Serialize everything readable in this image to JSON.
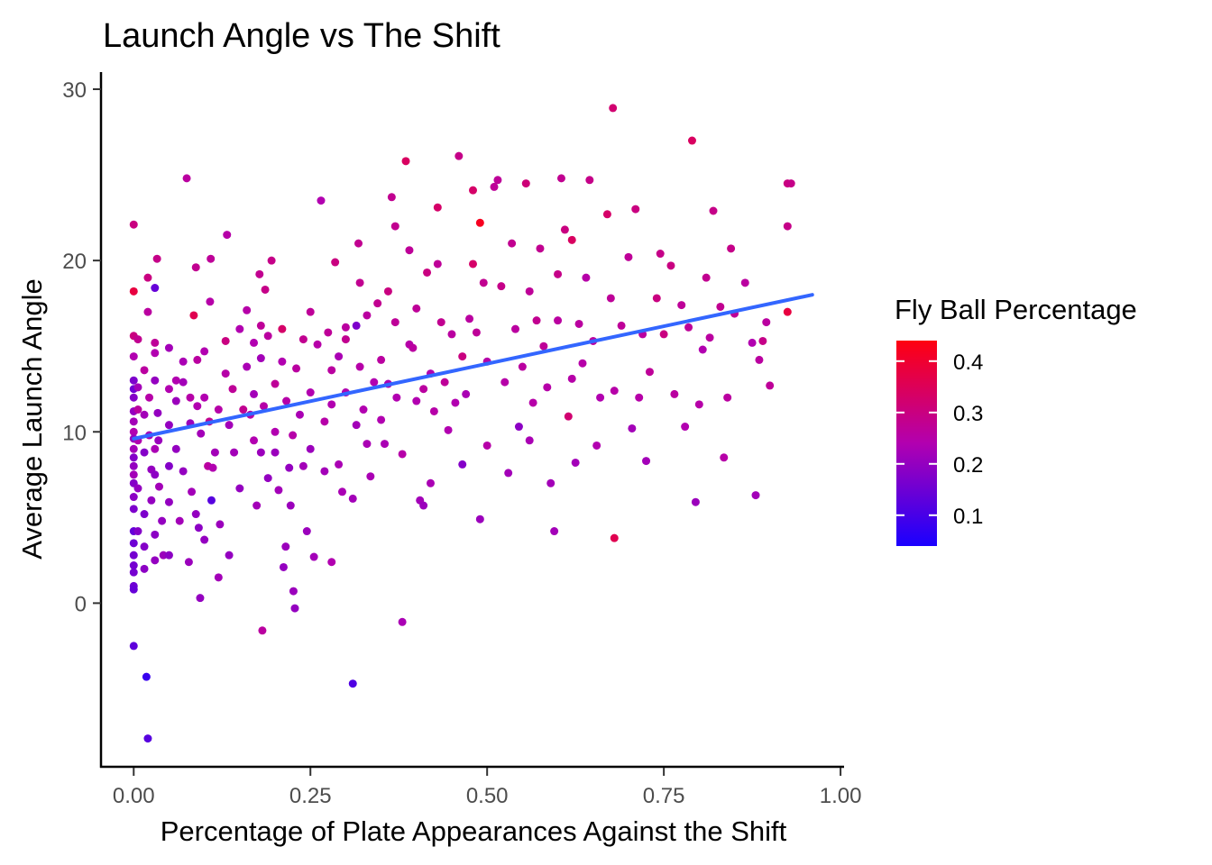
{
  "chart_data": {
    "type": "scatter",
    "title": "Launch Angle vs The Shift",
    "xlabel": "Percentage of Plate Appearances Against the Shift",
    "ylabel": "Average Launch Angle",
    "xlim": [
      -0.045,
      1.005
    ],
    "ylim": [
      -9.5,
      31
    ],
    "x_ticks": [
      0,
      0.25,
      0.5,
      0.75,
      1.0
    ],
    "x_tick_labels": [
      "0.00",
      "0.25",
      "0.50",
      "0.75",
      "1.00"
    ],
    "y_ticks": [
      0,
      10,
      20,
      30
    ],
    "y_tick_labels": [
      "0",
      "10",
      "20",
      "30"
    ],
    "grid": false,
    "legend": {
      "title": "Fly Ball Percentage",
      "placement": "right",
      "min": 0.04,
      "max": 0.44,
      "ticks": [
        0.1,
        0.2,
        0.3,
        0.4
      ],
      "tick_labels": [
        "0.1",
        "0.2",
        "0.3",
        "0.4"
      ],
      "low_color": "#1a00ff",
      "high_color": "#ff0010"
    },
    "trend_line": {
      "x": [
        0.0,
        0.96
      ],
      "y": [
        9.6,
        18.0
      ],
      "color": "#3366ff"
    },
    "points": [
      [
        0.0,
        22.1,
        0.3
      ],
      [
        0.0,
        18.2,
        0.38
      ],
      [
        0.0,
        15.6,
        0.3
      ],
      [
        0.0,
        14.4,
        0.24
      ],
      [
        0.0,
        13.0,
        0.17
      ],
      [
        0.0,
        12.5,
        0.15
      ],
      [
        0.0,
        12.0,
        0.18
      ],
      [
        0.0,
        11.2,
        0.2
      ],
      [
        0.0,
        10.6,
        0.22
      ],
      [
        0.0,
        10.0,
        0.24
      ],
      [
        0.0,
        9.6,
        0.2
      ],
      [
        0.0,
        9.0,
        0.22
      ],
      [
        0.0,
        8.5,
        0.18
      ],
      [
        0.0,
        8.0,
        0.2
      ],
      [
        0.0,
        7.5,
        0.22
      ],
      [
        0.0,
        7.0,
        0.18
      ],
      [
        0.0,
        6.2,
        0.19
      ],
      [
        0.0,
        5.5,
        0.17
      ],
      [
        0.0,
        4.2,
        0.14
      ],
      [
        0.0,
        3.5,
        0.15
      ],
      [
        0.0,
        2.8,
        0.16
      ],
      [
        0.0,
        2.2,
        0.16
      ],
      [
        0.0,
        1.8,
        0.16
      ],
      [
        0.0,
        1.0,
        0.15
      ],
      [
        0.0,
        0.8,
        0.14
      ],
      [
        0.0,
        -2.5,
        0.13
      ],
      [
        0.006,
        15.4,
        0.28
      ],
      [
        0.006,
        12.6,
        0.22
      ],
      [
        0.006,
        11.3,
        0.26
      ],
      [
        0.006,
        9.5,
        0.24
      ],
      [
        0.006,
        6.7,
        0.2
      ],
      [
        0.006,
        4.2,
        0.18
      ],
      [
        0.015,
        13.6,
        0.26
      ],
      [
        0.015,
        11.0,
        0.22
      ],
      [
        0.015,
        8.8,
        0.18
      ],
      [
        0.015,
        5.2,
        0.17
      ],
      [
        0.015,
        3.3,
        0.18
      ],
      [
        0.015,
        2.0,
        0.19
      ],
      [
        0.018,
        -4.3,
        0.08
      ],
      [
        0.02,
        -7.9,
        0.12
      ],
      [
        0.02,
        19.0,
        0.3
      ],
      [
        0.02,
        17.0,
        0.26
      ],
      [
        0.022,
        12.0,
        0.25
      ],
      [
        0.022,
        9.8,
        0.22
      ],
      [
        0.025,
        7.8,
        0.2
      ],
      [
        0.025,
        6.0,
        0.2
      ],
      [
        0.03,
        18.4,
        0.14
      ],
      [
        0.03,
        15.2,
        0.27
      ],
      [
        0.03,
        14.6,
        0.24
      ],
      [
        0.03,
        13.0,
        0.2
      ],
      [
        0.03,
        9.0,
        0.23
      ],
      [
        0.03,
        7.5,
        0.19
      ],
      [
        0.03,
        4.0,
        0.19
      ],
      [
        0.03,
        2.5,
        0.2
      ],
      [
        0.033,
        20.1,
        0.29
      ],
      [
        0.034,
        11.1,
        0.2
      ],
      [
        0.035,
        9.5,
        0.21
      ],
      [
        0.036,
        6.8,
        0.22
      ],
      [
        0.04,
        4.8,
        0.2
      ],
      [
        0.042,
        2.8,
        0.21
      ],
      [
        0.05,
        14.9,
        0.22
      ],
      [
        0.05,
        12.5,
        0.24
      ],
      [
        0.05,
        10.4,
        0.2
      ],
      [
        0.05,
        8.0,
        0.18
      ],
      [
        0.05,
        5.9,
        0.2
      ],
      [
        0.05,
        2.8,
        0.19
      ],
      [
        0.06,
        13.0,
        0.24
      ],
      [
        0.06,
        11.8,
        0.21
      ],
      [
        0.06,
        9.0,
        0.2
      ],
      [
        0.065,
        4.8,
        0.22
      ],
      [
        0.07,
        14.1,
        0.23
      ],
      [
        0.07,
        12.9,
        0.22
      ],
      [
        0.07,
        7.7,
        0.2
      ],
      [
        0.075,
        24.8,
        0.26
      ],
      [
        0.078,
        2.4,
        0.21
      ],
      [
        0.08,
        12.0,
        0.25
      ],
      [
        0.08,
        10.5,
        0.21
      ],
      [
        0.082,
        6.5,
        0.22
      ],
      [
        0.085,
        16.8,
        0.36
      ],
      [
        0.088,
        19.6,
        0.28
      ],
      [
        0.088,
        5.2,
        0.2
      ],
      [
        0.09,
        11.5,
        0.24
      ],
      [
        0.09,
        14.2,
        0.26
      ],
      [
        0.092,
        4.4,
        0.19
      ],
      [
        0.094,
        0.3,
        0.2
      ],
      [
        0.095,
        9.9,
        0.22
      ],
      [
        0.1,
        14.7,
        0.24
      ],
      [
        0.1,
        12.0,
        0.24
      ],
      [
        0.1,
        3.7,
        0.2
      ],
      [
        0.105,
        8.0,
        0.26
      ],
      [
        0.107,
        10.6,
        0.28
      ],
      [
        0.108,
        17.6,
        0.25
      ],
      [
        0.109,
        20.1,
        0.27
      ],
      [
        0.11,
        6.0,
        0.12
      ],
      [
        0.112,
        7.9,
        0.24
      ],
      [
        0.115,
        8.8,
        0.22
      ],
      [
        0.12,
        11.3,
        0.25
      ],
      [
        0.12,
        1.5,
        0.22
      ],
      [
        0.122,
        4.6,
        0.21
      ],
      [
        0.13,
        15.3,
        0.3
      ],
      [
        0.13,
        13.4,
        0.25
      ],
      [
        0.132,
        21.5,
        0.25
      ],
      [
        0.135,
        10.4,
        0.22
      ],
      [
        0.135,
        2.8,
        0.2
      ],
      [
        0.14,
        12.5,
        0.27
      ],
      [
        0.142,
        8.8,
        0.22
      ],
      [
        0.15,
        16.0,
        0.24
      ],
      [
        0.15,
        6.7,
        0.2
      ],
      [
        0.155,
        11.3,
        0.28
      ],
      [
        0.16,
        13.8,
        0.23
      ],
      [
        0.16,
        17.1,
        0.25
      ],
      [
        0.165,
        11.0,
        0.25
      ],
      [
        0.17,
        15.2,
        0.24
      ],
      [
        0.17,
        12.2,
        0.22
      ],
      [
        0.17,
        9.5,
        0.24
      ],
      [
        0.174,
        5.7,
        0.22
      ],
      [
        0.178,
        19.2,
        0.28
      ],
      [
        0.18,
        16.2,
        0.27
      ],
      [
        0.18,
        14.3,
        0.22
      ],
      [
        0.18,
        8.8,
        0.21
      ],
      [
        0.182,
        -1.6,
        0.26
      ],
      [
        0.184,
        11.5,
        0.25
      ],
      [
        0.186,
        18.3,
        0.29
      ],
      [
        0.19,
        15.6,
        0.26
      ],
      [
        0.19,
        7.3,
        0.2
      ],
      [
        0.195,
        20.0,
        0.29
      ],
      [
        0.2,
        12.8,
        0.27
      ],
      [
        0.2,
        10.0,
        0.24
      ],
      [
        0.2,
        8.8,
        0.21
      ],
      [
        0.205,
        6.6,
        0.22
      ],
      [
        0.21,
        16.0,
        0.33
      ],
      [
        0.21,
        14.1,
        0.24
      ],
      [
        0.212,
        2.1,
        0.2
      ],
      [
        0.215,
        3.3,
        0.21
      ],
      [
        0.216,
        11.8,
        0.25
      ],
      [
        0.22,
        7.9,
        0.2
      ],
      [
        0.222,
        5.7,
        0.21
      ],
      [
        0.225,
        9.8,
        0.25
      ],
      [
        0.226,
        0.7,
        0.21
      ],
      [
        0.228,
        -0.3,
        0.2
      ],
      [
        0.23,
        13.7,
        0.26
      ],
      [
        0.235,
        11.0,
        0.23
      ],
      [
        0.24,
        15.4,
        0.28
      ],
      [
        0.24,
        8.0,
        0.22
      ],
      [
        0.245,
        4.2,
        0.21
      ],
      [
        0.25,
        17.0,
        0.27
      ],
      [
        0.25,
        12.3,
        0.24
      ],
      [
        0.25,
        9.0,
        0.21
      ],
      [
        0.255,
        2.7,
        0.22
      ],
      [
        0.26,
        15.1,
        0.25
      ],
      [
        0.265,
        23.5,
        0.24
      ],
      [
        0.27,
        10.6,
        0.25
      ],
      [
        0.27,
        7.7,
        0.22
      ],
      [
        0.275,
        15.8,
        0.27
      ],
      [
        0.28,
        13.6,
        0.26
      ],
      [
        0.28,
        11.6,
        0.24
      ],
      [
        0.28,
        2.4,
        0.24
      ],
      [
        0.285,
        19.9,
        0.3
      ],
      [
        0.29,
        14.4,
        0.23
      ],
      [
        0.29,
        8.1,
        0.23
      ],
      [
        0.295,
        6.5,
        0.23
      ],
      [
        0.3,
        16.1,
        0.26
      ],
      [
        0.3,
        15.4,
        0.28
      ],
      [
        0.3,
        12.3,
        0.24
      ],
      [
        0.31,
        6.1,
        0.22
      ],
      [
        0.31,
        -4.7,
        0.11
      ],
      [
        0.315,
        16.2,
        0.17
      ],
      [
        0.315,
        10.4,
        0.22
      ],
      [
        0.318,
        21.0,
        0.28
      ],
      [
        0.32,
        13.8,
        0.25
      ],
      [
        0.32,
        18.7,
        0.28
      ],
      [
        0.325,
        11.3,
        0.24
      ],
      [
        0.33,
        9.3,
        0.23
      ],
      [
        0.33,
        16.8,
        0.26
      ],
      [
        0.335,
        7.4,
        0.23
      ],
      [
        0.34,
        12.9,
        0.24
      ],
      [
        0.345,
        17.5,
        0.28
      ],
      [
        0.35,
        14.2,
        0.26
      ],
      [
        0.35,
        10.7,
        0.24
      ],
      [
        0.355,
        9.3,
        0.23
      ],
      [
        0.36,
        18.2,
        0.3
      ],
      [
        0.36,
        12.8,
        0.23
      ],
      [
        0.365,
        23.7,
        0.28
      ],
      [
        0.37,
        22.0,
        0.28
      ],
      [
        0.37,
        16.4,
        0.27
      ],
      [
        0.372,
        12.0,
        0.24
      ],
      [
        0.38,
        8.7,
        0.25
      ],
      [
        0.38,
        -1.1,
        0.23
      ],
      [
        0.385,
        25.8,
        0.34
      ],
      [
        0.39,
        15.1,
        0.25
      ],
      [
        0.39,
        20.6,
        0.27
      ],
      [
        0.395,
        14.9,
        0.26
      ],
      [
        0.4,
        11.8,
        0.24
      ],
      [
        0.4,
        17.2,
        0.27
      ],
      [
        0.405,
        6.0,
        0.22
      ],
      [
        0.41,
        12.5,
        0.26
      ],
      [
        0.41,
        5.7,
        0.21
      ],
      [
        0.415,
        19.3,
        0.3
      ],
      [
        0.42,
        13.4,
        0.24
      ],
      [
        0.42,
        7.0,
        0.23
      ],
      [
        0.425,
        11.2,
        0.25
      ],
      [
        0.43,
        23.1,
        0.33
      ],
      [
        0.43,
        19.8,
        0.27
      ],
      [
        0.435,
        16.4,
        0.28
      ],
      [
        0.44,
        12.9,
        0.27
      ],
      [
        0.445,
        10.1,
        0.24
      ],
      [
        0.45,
        15.7,
        0.26
      ],
      [
        0.455,
        11.7,
        0.24
      ],
      [
        0.46,
        26.1,
        0.29
      ],
      [
        0.465,
        14.4,
        0.3
      ],
      [
        0.465,
        8.1,
        0.18
      ],
      [
        0.47,
        12.2,
        0.23
      ],
      [
        0.475,
        16.6,
        0.26
      ],
      [
        0.48,
        19.8,
        0.33
      ],
      [
        0.48,
        24.1,
        0.33
      ],
      [
        0.485,
        15.8,
        0.27
      ],
      [
        0.49,
        22.2,
        0.42
      ],
      [
        0.49,
        4.9,
        0.21
      ],
      [
        0.495,
        18.7,
        0.28
      ],
      [
        0.5,
        14.1,
        0.25
      ],
      [
        0.5,
        9.2,
        0.25
      ],
      [
        0.51,
        24.3,
        0.27
      ],
      [
        0.515,
        24.7,
        0.27
      ],
      [
        0.52,
        18.5,
        0.29
      ],
      [
        0.525,
        12.9,
        0.25
      ],
      [
        0.53,
        7.6,
        0.22
      ],
      [
        0.535,
        21.0,
        0.28
      ],
      [
        0.54,
        16.0,
        0.26
      ],
      [
        0.545,
        10.3,
        0.19
      ],
      [
        0.55,
        13.8,
        0.26
      ],
      [
        0.555,
        24.5,
        0.31
      ],
      [
        0.56,
        18.2,
        0.27
      ],
      [
        0.56,
        9.5,
        0.23
      ],
      [
        0.565,
        11.7,
        0.25
      ],
      [
        0.57,
        16.5,
        0.28
      ],
      [
        0.575,
        20.7,
        0.28
      ],
      [
        0.58,
        15.0,
        0.27
      ],
      [
        0.585,
        12.6,
        0.25
      ],
      [
        0.59,
        7.0,
        0.22
      ],
      [
        0.595,
        4.2,
        0.22
      ],
      [
        0.6,
        19.2,
        0.29
      ],
      [
        0.6,
        16.5,
        0.26
      ],
      [
        0.605,
        24.8,
        0.28
      ],
      [
        0.61,
        21.8,
        0.3
      ],
      [
        0.615,
        10.9,
        0.32
      ],
      [
        0.62,
        21.2,
        0.34
      ],
      [
        0.62,
        13.1,
        0.25
      ],
      [
        0.625,
        8.2,
        0.22
      ],
      [
        0.63,
        16.3,
        0.26
      ],
      [
        0.635,
        14.0,
        0.25
      ],
      [
        0.64,
        19.0,
        0.25
      ],
      [
        0.645,
        24.7,
        0.29
      ],
      [
        0.65,
        15.3,
        0.26
      ],
      [
        0.655,
        9.2,
        0.24
      ],
      [
        0.66,
        12.0,
        0.24
      ],
      [
        0.67,
        22.7,
        0.33
      ],
      [
        0.675,
        17.8,
        0.27
      ],
      [
        0.678,
        28.9,
        0.32
      ],
      [
        0.68,
        12.4,
        0.25
      ],
      [
        0.68,
        3.8,
        0.36
      ],
      [
        0.69,
        16.2,
        0.27
      ],
      [
        0.7,
        20.2,
        0.27
      ],
      [
        0.705,
        10.2,
        0.22
      ],
      [
        0.71,
        23.0,
        0.3
      ],
      [
        0.715,
        12.0,
        0.25
      ],
      [
        0.72,
        15.7,
        0.26
      ],
      [
        0.725,
        8.3,
        0.22
      ],
      [
        0.73,
        13.5,
        0.27
      ],
      [
        0.74,
        17.8,
        0.3
      ],
      [
        0.745,
        20.4,
        0.29
      ],
      [
        0.75,
        15.7,
        0.3
      ],
      [
        0.76,
        19.7,
        0.3
      ],
      [
        0.765,
        12.2,
        0.26
      ],
      [
        0.775,
        17.4,
        0.27
      ],
      [
        0.78,
        10.3,
        0.24
      ],
      [
        0.785,
        16.1,
        0.27
      ],
      [
        0.79,
        27.0,
        0.34
      ],
      [
        0.795,
        5.9,
        0.21
      ],
      [
        0.8,
        11.6,
        0.25
      ],
      [
        0.805,
        14.8,
        0.24
      ],
      [
        0.81,
        19.0,
        0.28
      ],
      [
        0.815,
        15.5,
        0.26
      ],
      [
        0.82,
        22.9,
        0.29
      ],
      [
        0.83,
        17.3,
        0.28
      ],
      [
        0.835,
        8.5,
        0.25
      ],
      [
        0.84,
        12.0,
        0.26
      ],
      [
        0.845,
        20.7,
        0.29
      ],
      [
        0.85,
        16.9,
        0.27
      ],
      [
        0.865,
        18.7,
        0.26
      ],
      [
        0.875,
        15.2,
        0.24
      ],
      [
        0.88,
        6.3,
        0.22
      ],
      [
        0.885,
        14.2,
        0.26
      ],
      [
        0.89,
        15.3,
        0.29
      ],
      [
        0.895,
        16.4,
        0.26
      ],
      [
        0.9,
        12.7,
        0.27
      ],
      [
        0.925,
        24.5,
        0.3
      ],
      [
        0.925,
        22.0,
        0.29
      ],
      [
        0.925,
        17.0,
        0.38
      ],
      [
        0.93,
        24.5,
        0.29
      ]
    ]
  }
}
